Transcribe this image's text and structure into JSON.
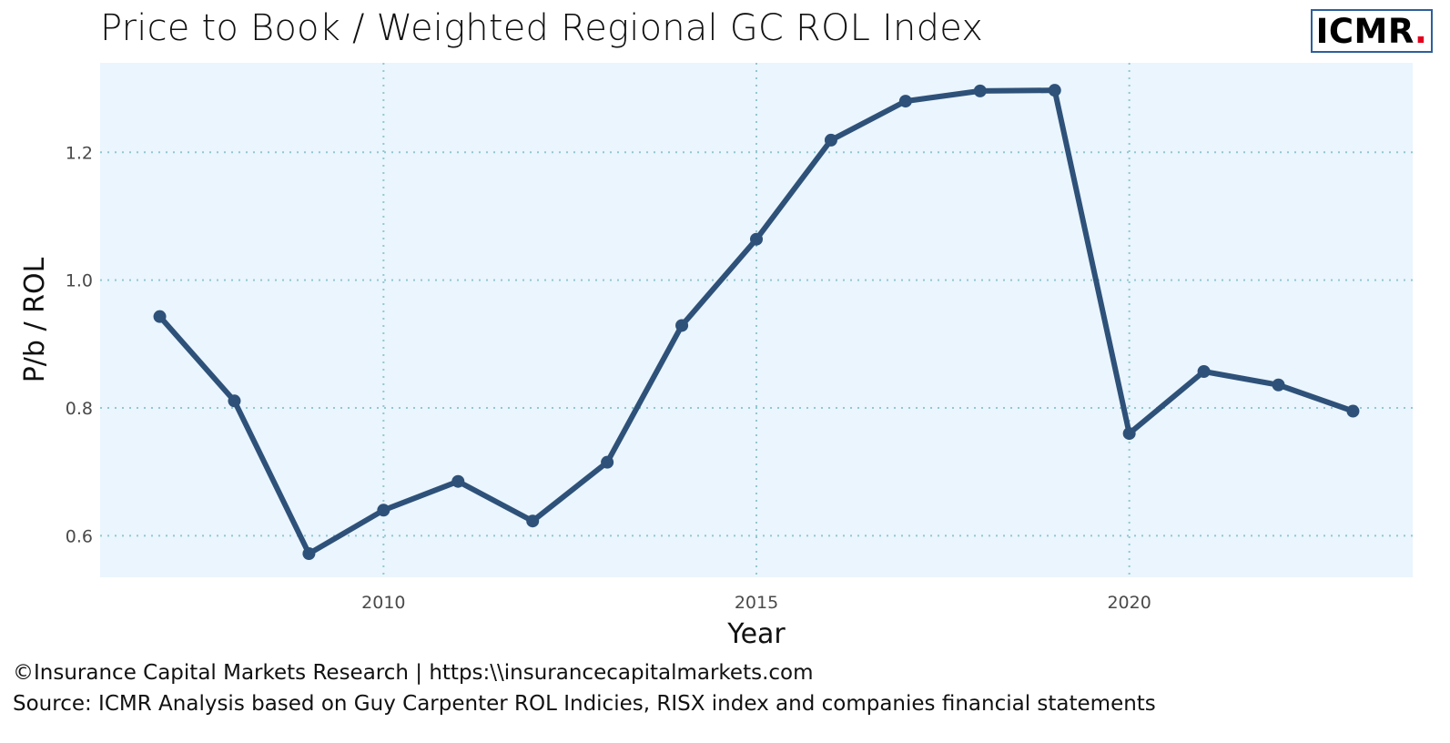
{
  "header": {
    "title": "Price to Book / Weighted Regional GC ROL Index",
    "logo_text": "ICMR",
    "logo_dot": "."
  },
  "footer": {
    "copyright": "©Insurance Capital Markets Research | https:\\\\insurancecapitalmarkets.com",
    "source": "Source: ICMR Analysis based on Guy Carpenter ROL Indicies, RISX index and companies financial statements"
  },
  "colors": {
    "panel_background": "#eaf5fd",
    "gridline": "#92c8d0",
    "series_line": "#2e5179",
    "logo_border": "#2d5f9b",
    "logo_dot": "#e3001b"
  },
  "chart_data": {
    "type": "line",
    "title": "Price to Book / Weighted Regional GC ROL Index",
    "xlabel": "Year",
    "ylabel": "P/b / ROL",
    "xlim": [
      2006.2,
      2023.8
    ],
    "ylim": [
      0.535,
      1.34
    ],
    "xticks": [
      2010,
      2015,
      2020
    ],
    "yticks": [
      0.6,
      0.8,
      1.0,
      1.2
    ],
    "ytick_labels": [
      "0.6",
      "0.8",
      "1.0",
      "1.2"
    ],
    "grid": true,
    "grid_style": "dotted",
    "legend": "none",
    "series": [
      {
        "x": [
          2007,
          2008,
          2009,
          2010,
          2011,
          2012,
          2013,
          2014,
          2015,
          2016,
          2017,
          2018,
          2019,
          2020,
          2021,
          2022,
          2023
        ],
        "y": [
          0.943,
          0.811,
          0.572,
          0.64,
          0.685,
          0.623,
          0.715,
          0.929,
          1.064,
          1.219,
          1.28,
          1.296,
          1.297,
          0.76,
          0.857,
          0.836,
          0.795
        ]
      }
    ]
  }
}
